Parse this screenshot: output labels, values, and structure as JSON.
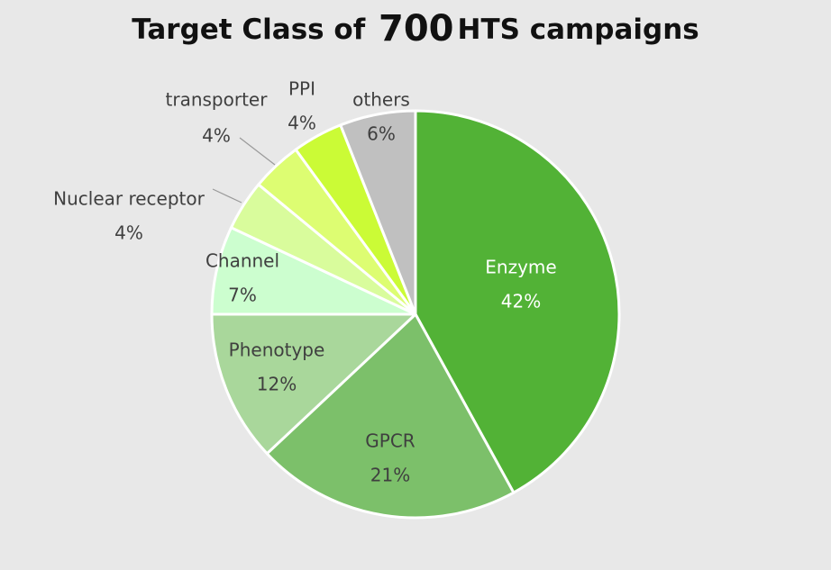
{
  "title": {
    "prefix": "Target Class of",
    "number": "700",
    "suffix": "HTS campaigns"
  },
  "chart_data": {
    "type": "pie",
    "title": "Target Class of 700 HTS campaigns",
    "slices": [
      {
        "label": "Enzyme",
        "value": 42,
        "value_text": "42%",
        "color": "#52b236",
        "text_color": "#ffffff"
      },
      {
        "label": "GPCR",
        "value": 21,
        "value_text": "21%",
        "color": "#7cc06a",
        "text_color": "#3f3f3f"
      },
      {
        "label": "Phenotype",
        "value": 12,
        "value_text": "12%",
        "color": "#a9d79b",
        "text_color": "#3f3f3f"
      },
      {
        "label": "Channel",
        "value": 7,
        "value_text": "7%",
        "color": "#ccfecf",
        "text_color": "#3f3f3f"
      },
      {
        "label": "Nuclear receptor",
        "value": 4,
        "value_text": "4%",
        "color": "#d9fc9c",
        "text_color": "#3f3f3f"
      },
      {
        "label": "transporter",
        "value": 4,
        "value_text": "4%",
        "color": "#ddfd72",
        "text_color": "#3f3f3f"
      },
      {
        "label": "PPI",
        "value": 4,
        "value_text": "4%",
        "color": "#cbfb36",
        "text_color": "#3f3f3f"
      },
      {
        "label": "others",
        "value": 6,
        "value_text": "6%",
        "color": "#c0c0c0",
        "text_color": "#3f3f3f"
      }
    ]
  }
}
